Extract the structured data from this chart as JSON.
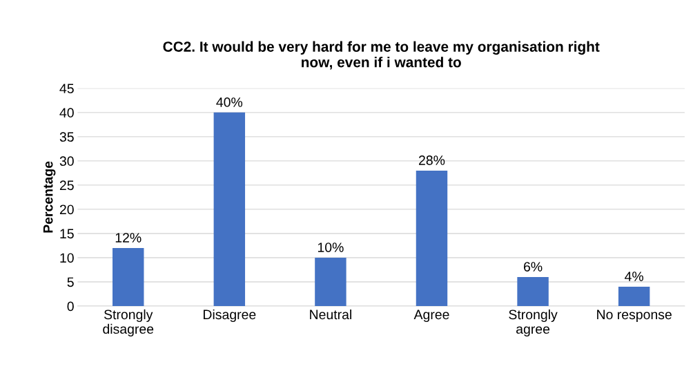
{
  "chart_data": {
    "type": "bar",
    "title": "CC2. It would be very hard for me to leave my organisation right\nnow, even if i wanted to",
    "ylabel": "Percentage",
    "categories": [
      "Strongly\ndisagree",
      "Disagree",
      "Neutral",
      "Agree",
      "Strongly\nagree",
      "No response"
    ],
    "values": [
      12,
      40,
      10,
      28,
      6,
      4
    ],
    "value_labels": [
      "12%",
      "40%",
      "10%",
      "28%",
      "6%",
      "4%"
    ],
    "color": "#4472c4",
    "ylim": [
      0,
      45
    ],
    "yticks": [
      0,
      5,
      10,
      15,
      20,
      25,
      30,
      35,
      40,
      45
    ],
    "grid": "y",
    "legend": false
  }
}
